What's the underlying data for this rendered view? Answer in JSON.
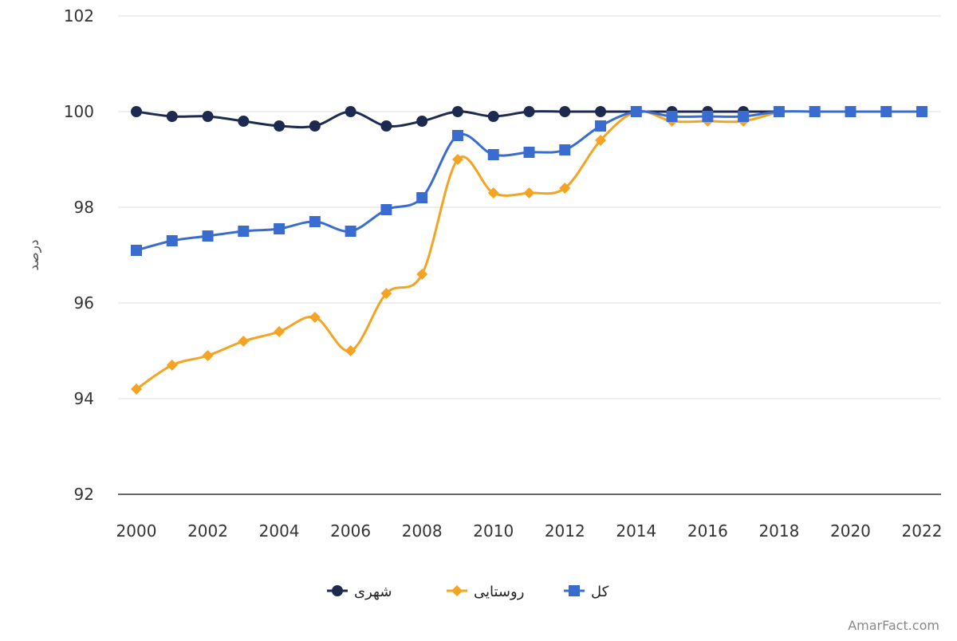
{
  "watermark": "AmarFact.com",
  "chart_data": {
    "type": "line",
    "title": "",
    "xlabel": "",
    "ylabel": "درصد",
    "x": [
      2000,
      2001,
      2002,
      2003,
      2004,
      2005,
      2006,
      2007,
      2008,
      2009,
      2010,
      2011,
      2012,
      2013,
      2014,
      2015,
      2016,
      2017,
      2018,
      2019,
      2020,
      2021,
      2022
    ],
    "xlim": [
      2000,
      2022
    ],
    "x_ticks": [
      "2000",
      "2002",
      "2004",
      "2006",
      "2008",
      "2010",
      "2012",
      "2014",
      "2016",
      "2018",
      "2020",
      "2022"
    ],
    "ylim": [
      92,
      102
    ],
    "y_ticks": [
      "92",
      "94",
      "96",
      "98",
      "100",
      "102"
    ],
    "grid": "horizontal",
    "legend_position": "bottom",
    "series": [
      {
        "name": "شهری",
        "color": "#1b2a4e",
        "marker": "circle",
        "values": [
          100,
          99.9,
          99.9,
          99.8,
          99.7,
          99.7,
          100,
          99.7,
          99.8,
          100,
          99.9,
          100,
          100,
          100,
          100,
          100,
          100,
          100,
          100,
          null,
          null,
          null,
          null
        ]
      },
      {
        "name": "روستایی",
        "color": "#f4a422",
        "marker": "diamond",
        "values": [
          94.2,
          94.7,
          94.9,
          95.2,
          95.4,
          95.7,
          95.0,
          96.2,
          96.6,
          99.0,
          98.3,
          98.3,
          98.4,
          99.4,
          100,
          99.8,
          99.8,
          99.8,
          100,
          null,
          null,
          null,
          null
        ]
      },
      {
        "name": "کل",
        "color": "#3a6cd0",
        "marker": "square",
        "values": [
          97.1,
          97.3,
          97.4,
          97.5,
          97.55,
          97.7,
          97.5,
          97.95,
          98.2,
          99.5,
          99.1,
          99.15,
          99.2,
          99.7,
          100,
          99.9,
          99.9,
          99.9,
          100,
          100,
          100,
          100,
          100
        ]
      }
    ]
  }
}
